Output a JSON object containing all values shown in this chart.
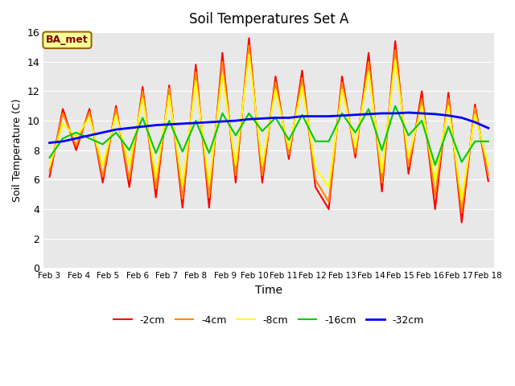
{
  "title": "Soil Temperatures Set A",
  "xlabel": "Time",
  "ylabel": "Soil Temperature (C)",
  "ylim": [
    0,
    16
  ],
  "yticks": [
    0,
    2,
    4,
    6,
    8,
    10,
    12,
    14,
    16
  ],
  "x_labels": [
    "Feb 3",
    "Feb 4",
    "Feb 5",
    "Feb 6",
    "Feb 7",
    "Feb 8",
    "Feb 9",
    "Feb 10",
    "Feb 11",
    "Feb 12",
    "Feb 13",
    "Feb 14",
    "Feb 15",
    "Feb 16",
    "Feb 17",
    "Feb 18"
  ],
  "annotation_text": "BA_met",
  "annotation_bg": "#ffff99",
  "annotation_border": "#996600",
  "annotation_text_color": "#800000",
  "bg_color": "#e8e8e8",
  "plot_bg": "#e8e8e8",
  "legend_entries": [
    "-2cm",
    "-4cm",
    "-8cm",
    "-16cm",
    "-32cm"
  ],
  "line_colors": [
    "#ff0000",
    "#ff8800",
    "#ffff00",
    "#00cc00",
    "#0000ff"
  ],
  "line_widths": [
    1.5,
    1.5,
    1.5,
    1.5,
    2.0
  ],
  "series_2cm": [
    6.2,
    10.8,
    8.0,
    10.8,
    5.8,
    11.0,
    5.5,
    12.3,
    4.8,
    12.4,
    4.1,
    13.8,
    4.1,
    14.6,
    5.8,
    15.6,
    5.8,
    13.0,
    7.4,
    13.4,
    5.5,
    4.0,
    13.0,
    7.5,
    14.6,
    5.2,
    15.4,
    6.4,
    12.0,
    4.0,
    11.9,
    3.1,
    11.1,
    5.9
  ],
  "series_4cm": [
    6.6,
    10.5,
    8.3,
    10.6,
    6.2,
    10.8,
    6.0,
    12.0,
    5.4,
    12.2,
    4.7,
    13.3,
    4.8,
    14.0,
    6.3,
    15.1,
    6.3,
    12.6,
    7.7,
    12.9,
    6.0,
    4.5,
    12.6,
    7.8,
    14.0,
    5.8,
    14.8,
    6.9,
    11.5,
    4.9,
    11.5,
    3.8,
    10.9,
    6.3
  ],
  "series_8cm": [
    6.9,
    9.8,
    8.9,
    10.2,
    7.0,
    10.4,
    7.0,
    11.5,
    6.2,
    11.7,
    5.6,
    12.7,
    5.7,
    13.1,
    7.0,
    14.5,
    7.0,
    12.1,
    8.1,
    12.3,
    6.8,
    5.5,
    12.1,
    8.2,
    13.3,
    6.5,
    14.1,
    7.5,
    11.0,
    5.9,
    11.0,
    4.6,
    10.4,
    7.0
  ],
  "series_16cm": [
    7.5,
    8.8,
    9.2,
    8.8,
    8.4,
    9.2,
    8.0,
    10.2,
    7.8,
    10.0,
    7.9,
    10.0,
    7.8,
    10.5,
    9.0,
    10.5,
    9.3,
    10.2,
    8.7,
    10.4,
    8.6,
    8.6,
    10.5,
    9.2,
    10.8,
    8.0,
    11.0,
    9.0,
    10.0,
    7.0,
    9.6,
    7.2,
    8.6,
    8.6
  ],
  "series_32cm": [
    8.5,
    8.6,
    8.8,
    9.0,
    9.2,
    9.4,
    9.5,
    9.6,
    9.7,
    9.75,
    9.8,
    9.85,
    9.9,
    9.95,
    10.0,
    10.1,
    10.15,
    10.2,
    10.2,
    10.3,
    10.3,
    10.3,
    10.35,
    10.4,
    10.45,
    10.5,
    10.5,
    10.55,
    10.5,
    10.45,
    10.35,
    10.2,
    9.9,
    9.5
  ]
}
